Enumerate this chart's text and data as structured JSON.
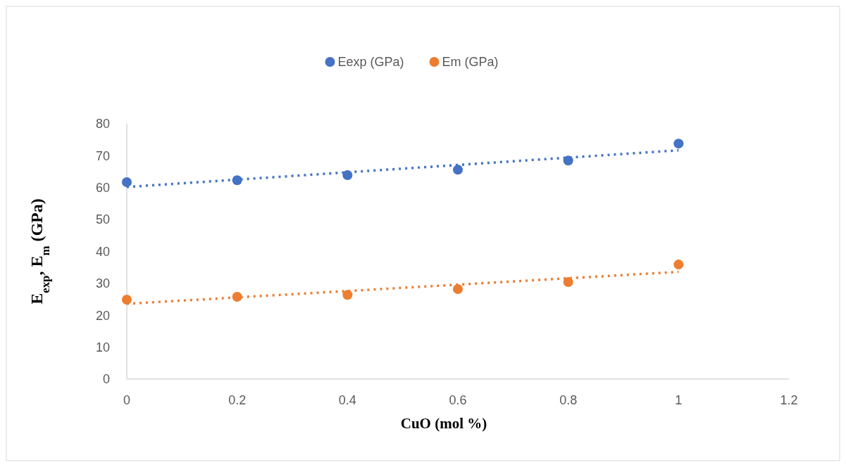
{
  "chart_data": {
    "type": "scatter",
    "xlabel": "CuO (mol %)",
    "ylabel": "E$_{exp}$, E$_{m}$ (GPa)",
    "x": [
      0,
      0.2,
      0.4,
      0.6,
      0.8,
      1
    ],
    "series": [
      {
        "name": "Eexp (GPa)",
        "color": "#4472c4",
        "values": [
          61.7,
          62.3,
          63.9,
          65.6,
          68.5,
          73.8
        ]
      },
      {
        "name": "Em (GPa)",
        "color": "#ed7d31",
        "values": [
          24.9,
          25.8,
          26.4,
          28.2,
          30.4,
          35.9
        ]
      },
      {
        "type": "line",
        "color": "#4472c4",
        "line_style": "dotted",
        "marker": "none",
        "values": [
          60.2,
          62.5,
          64.8,
          67.1,
          69.4,
          71.7
        ]
      },
      {
        "type": "line",
        "color": "#ed7d31",
        "line_style": "dotted",
        "marker": "none",
        "values": [
          23.6,
          25.6,
          27.6,
          29.6,
          31.6,
          33.6
        ]
      }
    ],
    "xlim": [
      0,
      1.2
    ],
    "xticks": [
      0,
      0.2,
      0.4,
      0.6,
      0.8,
      1,
      1.2
    ],
    "ylim": [
      0,
      80
    ],
    "yticks": [
      0,
      10,
      20,
      30,
      40,
      50,
      60,
      70,
      80
    ],
    "grid": false,
    "legend": "top",
    "marker": "circle"
  }
}
